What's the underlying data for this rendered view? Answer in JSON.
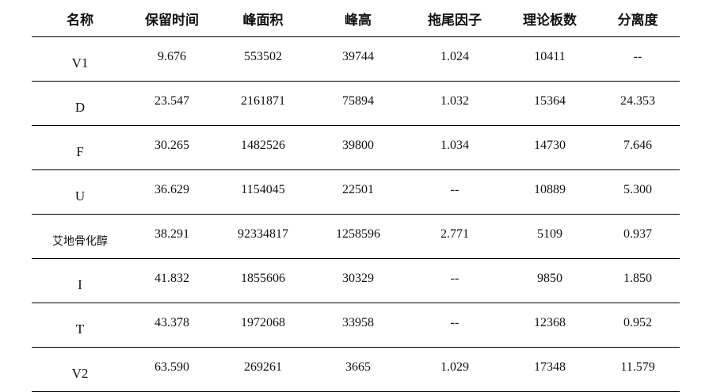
{
  "table": {
    "headers": [
      "名称",
      "保留时间",
      "峰面积",
      "峰高",
      "拖尾因子",
      "理论板数",
      "分离度"
    ],
    "rows": [
      [
        "V1",
        "9.676",
        "553502",
        "39744",
        "1.024",
        "10411",
        "--"
      ],
      [
        "D",
        "23.547",
        "2161871",
        "75894",
        "1.032",
        "15364",
        "24.353"
      ],
      [
        "F",
        "30.265",
        "1482526",
        "39800",
        "1.034",
        "14730",
        "7.646"
      ],
      [
        "U",
        "36.629",
        "1154045",
        "22501",
        "--",
        "10889",
        "5.300"
      ],
      [
        "艾地骨化醇",
        "38.291",
        "92334817",
        "1258596",
        "2.771",
        "5109",
        "0.937"
      ],
      [
        "I",
        "41.832",
        "1855606",
        "30329",
        "--",
        "9850",
        "1.850"
      ],
      [
        "T",
        "43.378",
        "1972068",
        "33958",
        "--",
        "12368",
        "0.952"
      ],
      [
        "V2",
        "63.590",
        "269261",
        "3665",
        "1.029",
        "17348",
        "11.579"
      ]
    ]
  }
}
